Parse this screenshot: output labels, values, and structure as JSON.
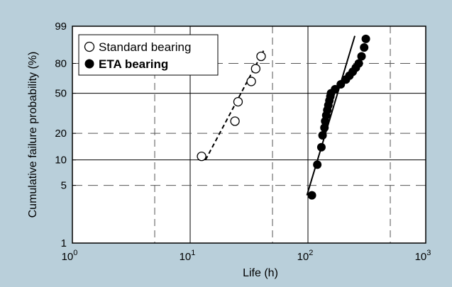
{
  "chart_data": {
    "type": "scatter",
    "xlabel": "Life (h)",
    "ylabel": "Cumulative failure probability  (%)",
    "x_scale": "log",
    "y_scale": "weibull",
    "xlim": [
      1,
      1000
    ],
    "ylim": [
      1,
      99
    ],
    "x_ticks": [
      {
        "value": 1,
        "base": "10",
        "exp": "0"
      },
      {
        "value": 10,
        "base": "10",
        "exp": "1"
      },
      {
        "value": 100,
        "base": "10",
        "exp": "2"
      },
      {
        "value": 1000,
        "base": "10",
        "exp": "3"
      }
    ],
    "y_ticks": [
      "99",
      "80",
      "50",
      "20",
      "10",
      "5",
      "1"
    ],
    "y_dashed_gridlines": [
      80,
      20,
      5
    ],
    "legend_position": "top-left",
    "series": [
      {
        "name": "Standard bearing",
        "marker": "open-circle",
        "fit_line": "dashed",
        "fit_from": [
          13.5,
          10
        ],
        "fit_to": [
          42,
          90
        ],
        "points": [
          {
            "x": 12.5,
            "y": 11
          },
          {
            "x": 24,
            "y": 27
          },
          {
            "x": 25.5,
            "y": 42
          },
          {
            "x": 33,
            "y": 62
          },
          {
            "x": 36,
            "y": 75
          },
          {
            "x": 40,
            "y": 86
          }
        ]
      },
      {
        "name": "ETA bearing",
        "marker": "filled-circle",
        "fit_line": "solid",
        "fit_from": [
          98,
          3.8
        ],
        "fit_to": [
          250,
          97
        ],
        "points": [
          {
            "x": 108,
            "y": 3.8
          },
          {
            "x": 120,
            "y": 8.8
          },
          {
            "x": 130,
            "y": 14
          },
          {
            "x": 133,
            "y": 19
          },
          {
            "x": 138,
            "y": 23
          },
          {
            "x": 140,
            "y": 27
          },
          {
            "x": 143,
            "y": 31
          },
          {
            "x": 146,
            "y": 35
          },
          {
            "x": 149,
            "y": 39
          },
          {
            "x": 152,
            "y": 43
          },
          {
            "x": 155,
            "y": 47
          },
          {
            "x": 157,
            "y": 50
          },
          {
            "x": 170,
            "y": 54
          },
          {
            "x": 190,
            "y": 59
          },
          {
            "x": 210,
            "y": 64
          },
          {
            "x": 225,
            "y": 68
          },
          {
            "x": 240,
            "y": 72
          },
          {
            "x": 255,
            "y": 76
          },
          {
            "x": 270,
            "y": 80
          },
          {
            "x": 285,
            "y": 86
          },
          {
            "x": 300,
            "y": 92
          },
          {
            "x": 310,
            "y": 96
          }
        ]
      }
    ]
  }
}
